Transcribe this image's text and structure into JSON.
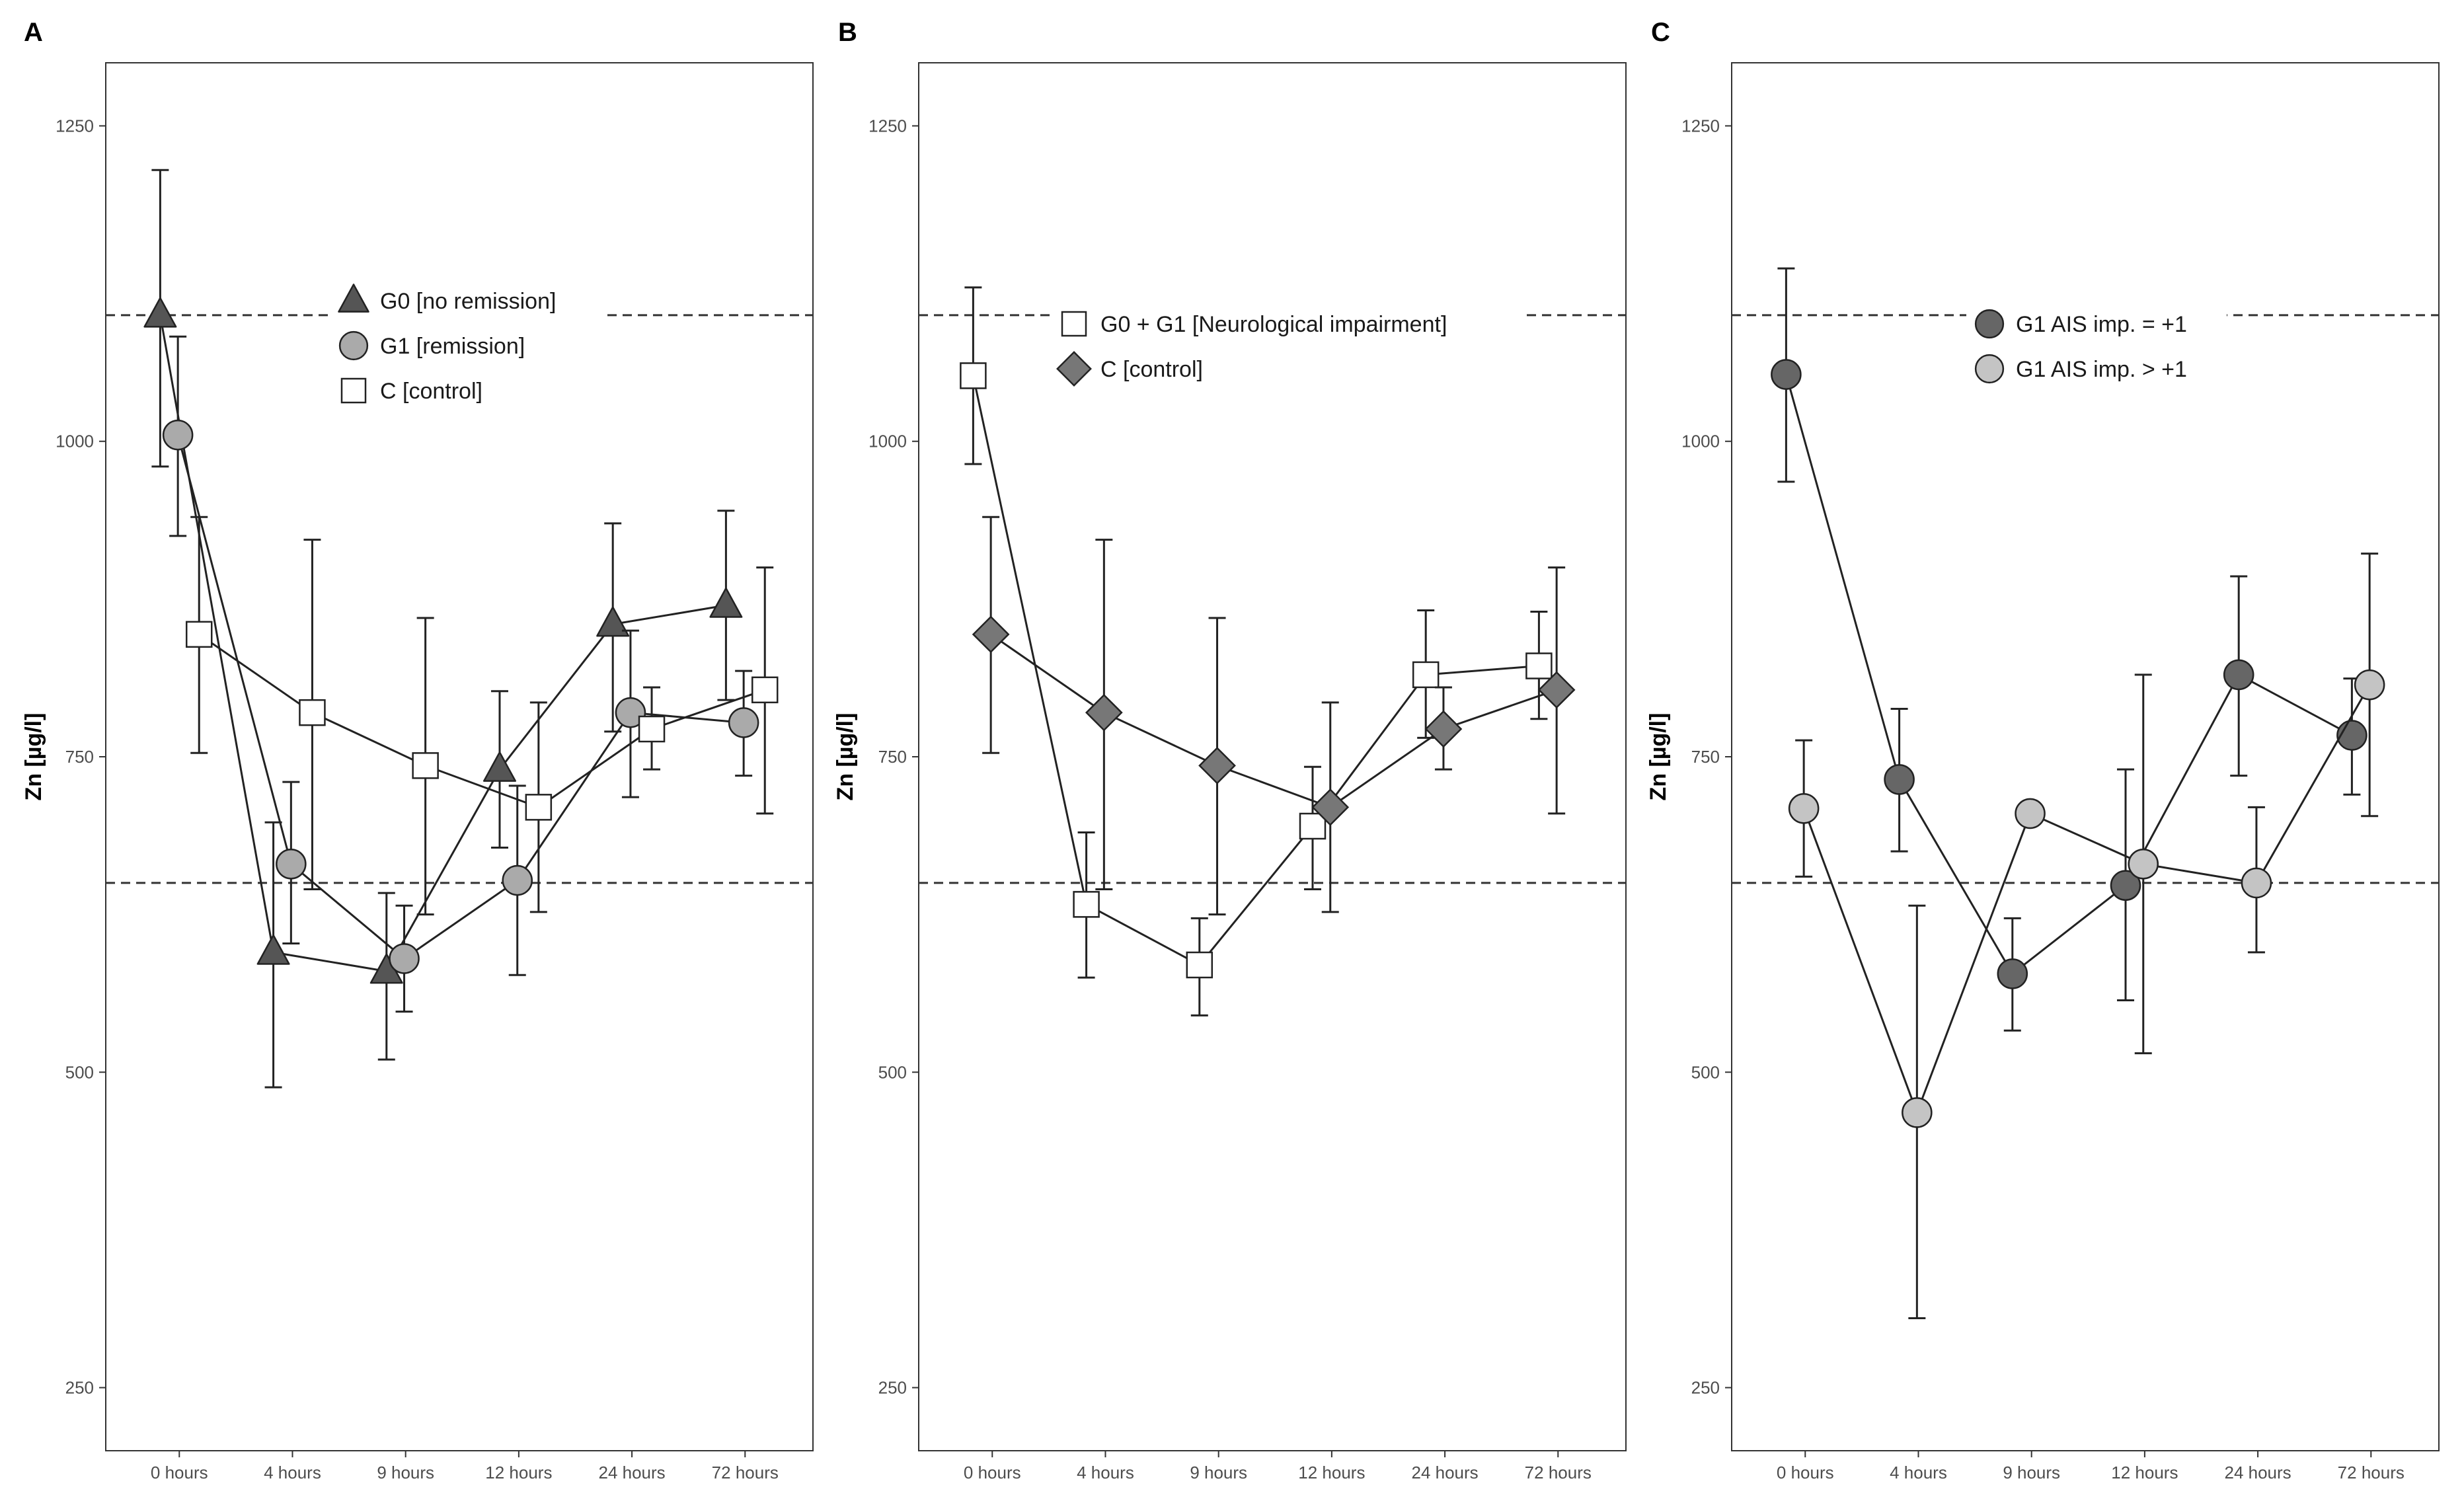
{
  "chart_data": [
    {
      "panel": "A",
      "type": "line",
      "ylabel": "Zn [µg/l]",
      "xlabel": "",
      "categories": [
        "0 hours",
        "4 hours",
        "9 hours",
        "12 hours",
        "24 hours",
        "72 hours"
      ],
      "ylim": [
        200,
        1300
      ],
      "yticks": [
        250,
        500,
        750,
        1000,
        1250
      ],
      "reference_lines": [
        1100,
        650
      ],
      "grid": false,
      "legend": "inside-top-center",
      "series": [
        {
          "name": "G0 [no remission]",
          "marker": "triangle",
          "color": "#555555",
          "values": [
            1100,
            595,
            580,
            740,
            855,
            870
          ],
          "error_low": [
            980,
            488,
            510,
            678,
            770,
            795
          ],
          "error_high": [
            1215,
            698,
            642,
            802,
            935,
            945
          ]
        },
        {
          "name": "G1 [remission]",
          "marker": "circle",
          "color": "#aaaaaa",
          "values": [
            1005,
            665,
            590,
            652,
            785,
            777
          ],
          "error_low": [
            925,
            602,
            548,
            577,
            718,
            735
          ],
          "error_high": [
            1083,
            730,
            632,
            727,
            850,
            818
          ]
        },
        {
          "name": "C [control]",
          "marker": "square",
          "color": "#ffffff",
          "values": [
            847,
            785,
            743,
            710,
            772,
            803
          ],
          "error_low": [
            753,
            645,
            625,
            627,
            740,
            705
          ],
          "error_high": [
            940,
            922,
            860,
            793,
            805,
            900
          ]
        }
      ]
    },
    {
      "panel": "B",
      "type": "line",
      "ylabel": "Zn [µg/l]",
      "xlabel": "",
      "categories": [
        "0 hours",
        "4 hours",
        "9 hours",
        "12 hours",
        "24 hours",
        "72 hours"
      ],
      "ylim": [
        200,
        1300
      ],
      "yticks": [
        250,
        500,
        750,
        1000,
        1250
      ],
      "reference_lines": [
        1100,
        650
      ],
      "grid": false,
      "legend": "inside-top-right",
      "series": [
        {
          "name": "G0 + G1 [Neurological impairment]",
          "marker": "square",
          "color": "#ffffff",
          "values": [
            1052,
            633,
            585,
            695,
            815,
            822
          ],
          "error_low": [
            982,
            575,
            545,
            645,
            765,
            780
          ],
          "error_high": [
            1122,
            690,
            622,
            742,
            866,
            865
          ]
        },
        {
          "name": "C [control]",
          "marker": "diamond",
          "color": "#777777",
          "values": [
            847,
            785,
            743,
            710,
            772,
            803
          ],
          "error_low": [
            753,
            645,
            625,
            627,
            740,
            705
          ],
          "error_high": [
            940,
            922,
            860,
            793,
            805,
            900
          ]
        }
      ]
    },
    {
      "panel": "C",
      "type": "line",
      "ylabel": "Zn [µg/l]",
      "xlabel": "",
      "categories": [
        "0 hours",
        "4 hours",
        "9 hours",
        "12 hours",
        "24 hours",
        "72 hours"
      ],
      "ylim": [
        200,
        1300
      ],
      "yticks": [
        250,
        500,
        750,
        1000,
        1250
      ],
      "reference_lines": [
        1100,
        650
      ],
      "grid": false,
      "legend": "inside-top-right",
      "series": [
        {
          "name": "G1 AIS imp. = +1",
          "marker": "circle",
          "color": "#666666",
          "values": [
            1053,
            732,
            578,
            648,
            815,
            767
          ],
          "error_low": [
            968,
            675,
            533,
            557,
            735,
            720
          ],
          "error_high": [
            1137,
            788,
            622,
            740,
            893,
            812
          ]
        },
        {
          "name": "G1 AIS imp. > +1",
          "marker": "circle",
          "color": "#c4c4c4",
          "values": [
            709,
            468,
            705,
            665,
            650,
            807
          ],
          "error_low": [
            655,
            305,
            705,
            515,
            595,
            703
          ],
          "error_high": [
            763,
            632,
            705,
            815,
            710,
            911
          ]
        }
      ]
    }
  ]
}
